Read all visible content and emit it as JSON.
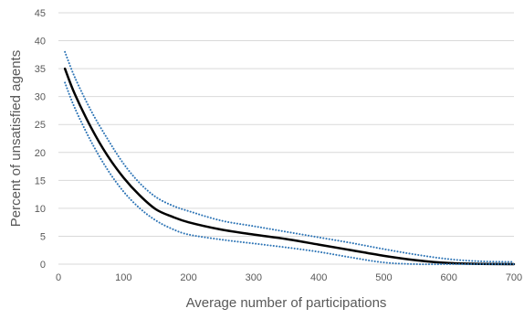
{
  "chart_data": {
    "type": "line",
    "title": "",
    "xlabel": "Average number of participations",
    "ylabel": "Percent of unsatisfied agents",
    "xlim": [
      0,
      700
    ],
    "ylim": [
      0,
      45
    ],
    "x_ticks": [
      0,
      100,
      200,
      300,
      400,
      500,
      600,
      700
    ],
    "y_ticks": [
      0,
      5,
      10,
      15,
      20,
      25,
      30,
      35,
      40,
      45
    ],
    "grid": "horizontal",
    "legend": "none",
    "series": [
      {
        "style": "solid",
        "color": "#000000",
        "x": [
          10,
          25,
          50,
          75,
          100,
          125,
          150,
          175,
          200,
          250,
          300,
          350,
          400,
          450,
          500,
          550,
          600,
          650,
          700
        ],
        "y": [
          35,
          30.5,
          24.5,
          19.5,
          15.5,
          12.3,
          9.8,
          8.5,
          7.5,
          6.2,
          5.3,
          4.5,
          3.5,
          2.5,
          1.5,
          0.7,
          0.2,
          0.05,
          0
        ]
      },
      {
        "style": "dotted",
        "color": "#2e75b6",
        "x": [
          10,
          25,
          50,
          75,
          100,
          125,
          150,
          175,
          200,
          250,
          300,
          350,
          400,
          450,
          500,
          550,
          600,
          650,
          700
        ],
        "y": [
          38,
          33.5,
          27.5,
          22.5,
          18,
          14.5,
          12,
          10.5,
          9.5,
          7.8,
          6.8,
          5.8,
          4.8,
          3.8,
          2.7,
          1.7,
          0.9,
          0.5,
          0.4
        ]
      },
      {
        "style": "dotted",
        "color": "#2e75b6",
        "x": [
          10,
          25,
          50,
          75,
          100,
          125,
          150,
          175,
          200,
          250,
          300,
          350,
          400,
          450,
          500,
          550,
          600,
          650,
          700
        ],
        "y": [
          32.5,
          28,
          22,
          17,
          13,
          10,
          7.8,
          6.3,
          5.3,
          4.4,
          3.7,
          3,
          2.2,
          1.2,
          0.3,
          0,
          0,
          0,
          0
        ]
      }
    ]
  }
}
